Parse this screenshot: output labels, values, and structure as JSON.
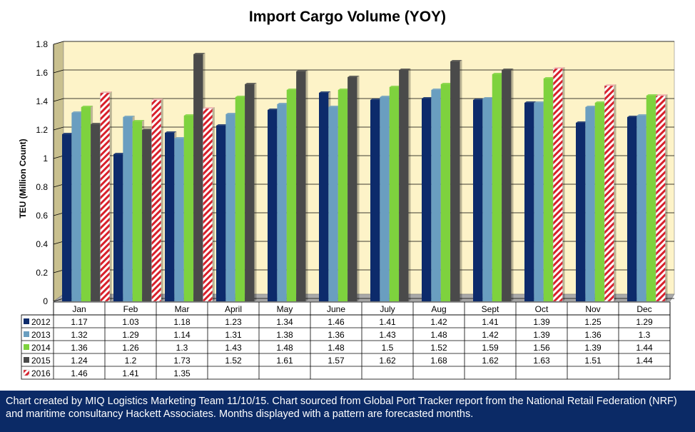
{
  "chart_data": {
    "type": "bar",
    "title": "Import Cargo Volume (YOY)",
    "xlabel": "",
    "ylabel": "TEU (Million Count)",
    "ylim": [
      0,
      1.8
    ],
    "yticks": [
      "0",
      "0.2",
      "0.4",
      "0.6",
      "0.8",
      "1",
      "1.2",
      "1.4",
      "1.6",
      "1.8"
    ],
    "grid": true,
    "legend": "data-table-left",
    "categories": [
      "Jan",
      "Feb",
      "Mar",
      "April",
      "May",
      "June",
      "July",
      "Aug",
      "Sept",
      "Oct",
      "Nov",
      "Dec"
    ],
    "series": [
      {
        "name": "2012",
        "color": "#0d2b6b",
        "values": [
          1.17,
          1.03,
          1.18,
          1.23,
          1.34,
          1.46,
          1.41,
          1.42,
          1.41,
          1.39,
          1.25,
          1.29
        ]
      },
      {
        "name": "2013",
        "color": "#6a9ec0",
        "values": [
          1.32,
          1.29,
          1.14,
          1.31,
          1.38,
          1.36,
          1.43,
          1.48,
          1.42,
          1.39,
          1.36,
          1.3
        ]
      },
      {
        "name": "2014",
        "color": "#7ed23e",
        "values": [
          1.36,
          1.26,
          1.3,
          1.43,
          1.48,
          1.48,
          1.5,
          1.52,
          1.59,
          1.56,
          1.39,
          1.44
        ]
      },
      {
        "name": "2015",
        "color": "#4a4a4a",
        "values": [
          1.24,
          1.2,
          1.73,
          1.52,
          1.61,
          1.57,
          1.62,
          1.68,
          1.62,
          1.63,
          1.51,
          1.44
        ]
      },
      {
        "name": "2016",
        "color": "#d8202b",
        "pattern": "red-white-diagonal-stripes",
        "values": [
          1.46,
          1.41,
          1.35,
          null,
          null,
          null,
          null,
          null,
          null,
          null,
          null,
          null
        ]
      }
    ],
    "pattern_overrides": [
      {
        "series": "2015",
        "categories": [
          "Oct",
          "Nov",
          "Dec"
        ]
      }
    ],
    "plot_background": "#fdf3c8"
  },
  "footer": {
    "text": "Chart created by MIQ Logistics Marketing Team 11/10/15. Chart sourced from Global Port Tracker report from the National Retail Federation (NRF) and maritime consultancy Hackett Associates. Months displayed with a pattern are forecasted months."
  }
}
